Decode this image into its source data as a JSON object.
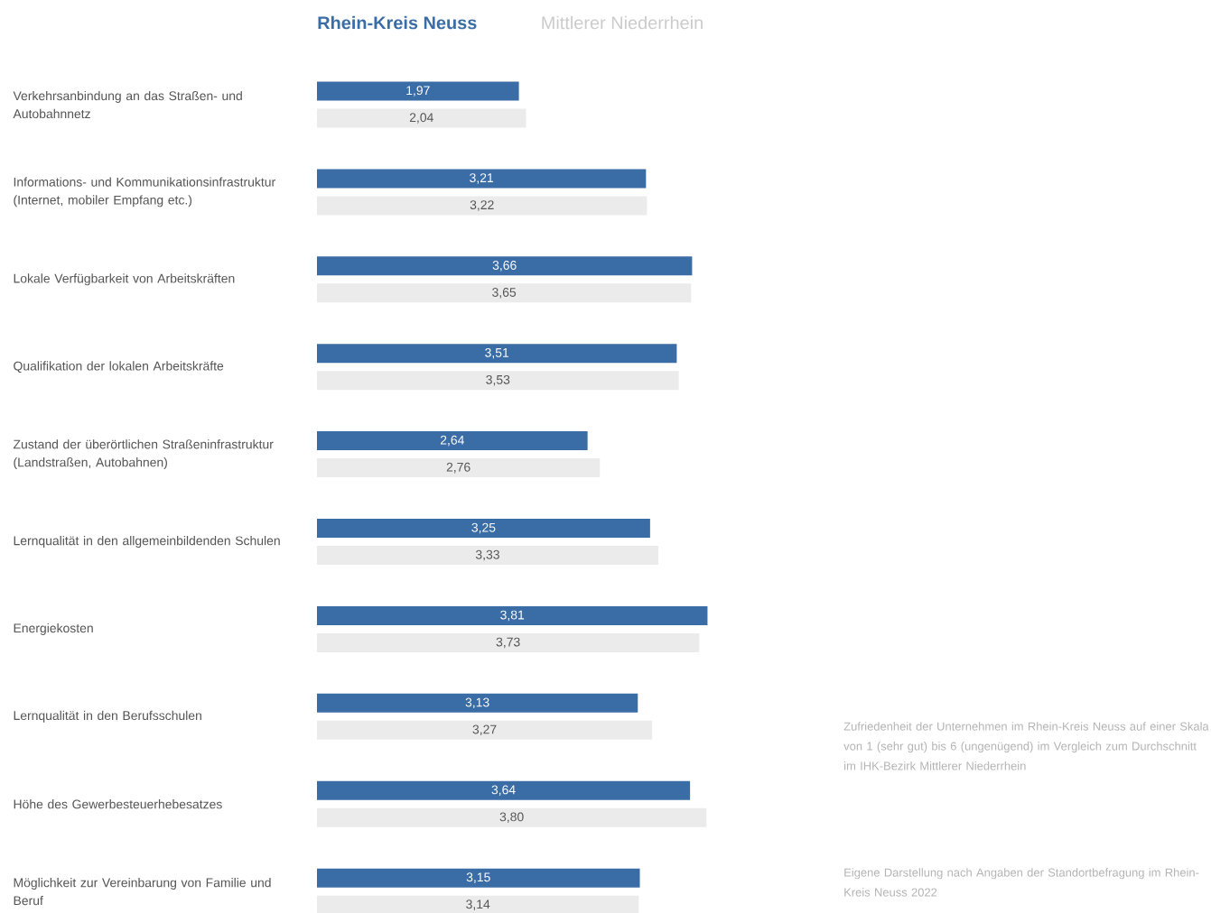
{
  "chart_data": {
    "type": "bar",
    "orientation": "horizontal",
    "categories": [
      "Verkehrsanbindung an das Straßen- und Autobahnnetz",
      "Informations- und Kommunikationsinfrastruktur (Internet, mobiler Empfang etc.)",
      "Lokale Verfügbarkeit von Arbeitskräften",
      "Qualifikation der lokalen Arbeitskräfte",
      "Zustand der überörtlichen Straßeninfrastruktur (Landstraßen, Autobahnen)",
      "Lernqualität in den allgemeinbildenden Schulen",
      "Energiekosten",
      "Lernqualität in den Berufsschulen",
      "Höhe des Gewerbesteuerhebesatzes",
      "Möglichkeit zur Vereinbarung von Familie und Beruf"
    ],
    "series": [
      {
        "name": "Rhein-Kreis Neuss",
        "color": "#3a6ca6",
        "values": [
          1.97,
          3.21,
          3.66,
          3.51,
          2.64,
          3.25,
          3.81,
          3.13,
          3.64,
          3.15
        ],
        "value_labels": [
          "1,97",
          "3,21",
          "3,66",
          "3,51",
          "2,64",
          "3,25",
          "3,81",
          "3,13",
          "3,64",
          "3,15"
        ]
      },
      {
        "name": "Mittlerer Niederrhein",
        "color": "#ebebeb",
        "values": [
          2.04,
          3.22,
          3.65,
          3.53,
          2.76,
          3.33,
          3.73,
          3.27,
          3.8,
          3.14
        ],
        "value_labels": [
          "2,04",
          "3,22",
          "3,65",
          "3,53",
          "2,76",
          "3,33",
          "3,73",
          "3,27",
          "3,80",
          "3,14"
        ]
      }
    ],
    "annotations": [
      "Zufriedenheit der Unternehmen im Rhein-Kreis Neuss auf einer Skala von 1 (sehr gut) bis 6 (ungenügend) im Vergleich zum Durchschnitt im IHK-Bezirk Mittlerer Niederrhein",
      "Eigene Darstellung nach Angaben der Standortbefragung im Rhein-Kreis Neuss 2022"
    ]
  }
}
